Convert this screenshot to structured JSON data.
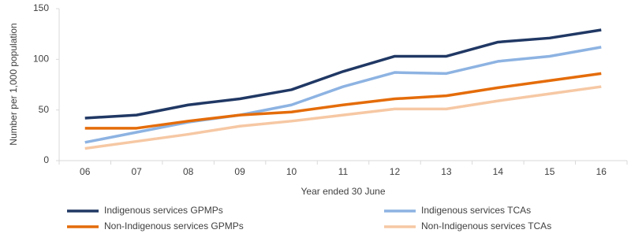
{
  "chart_data": {
    "type": "line",
    "x_label": "Year ended 30 June",
    "y_label": "Number per 1,000 population",
    "categories": [
      "06",
      "07",
      "08",
      "09",
      "10",
      "11",
      "12",
      "13",
      "14",
      "15",
      "16"
    ],
    "series": [
      {
        "name": "Indigenous services GPMPs",
        "color": "#203864",
        "values": [
          42,
          45,
          55,
          61,
          70,
          88,
          103,
          103,
          117,
          121,
          129
        ]
      },
      {
        "name": "Indigenous services TCAs",
        "color": "#8db3e2",
        "values": [
          18,
          28,
          38,
          45,
          55,
          73,
          87,
          86,
          98,
          103,
          112
        ]
      },
      {
        "name": "Non-Indigenous services GPMPs",
        "color": "#e46c0a",
        "values": [
          32,
          32,
          39,
          45,
          48,
          55,
          61,
          64,
          72,
          79,
          86
        ]
      },
      {
        "name": "Non-Indigenous services TCAs",
        "color": "#f6c8a4",
        "values": [
          12,
          19,
          26,
          34,
          39,
          45,
          51,
          51,
          59,
          66,
          73
        ]
      }
    ],
    "ylim": [
      0,
      150
    ],
    "yticks": [
      0,
      50,
      100,
      150
    ],
    "grid": false
  }
}
